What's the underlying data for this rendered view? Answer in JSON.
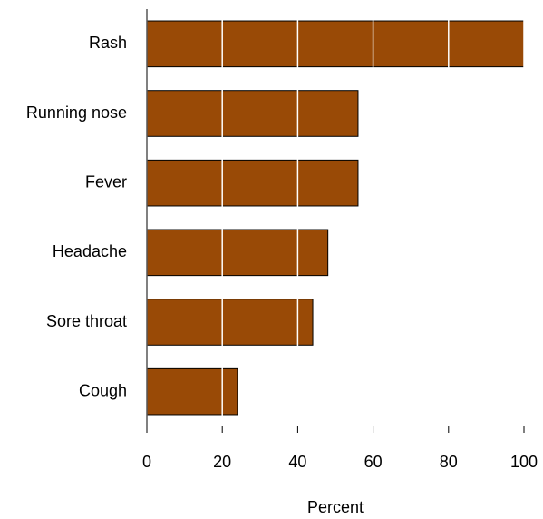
{
  "chart_data": {
    "type": "bar",
    "orientation": "horizontal",
    "x_label": "Percent",
    "categories": [
      "Rash",
      "Running nose",
      "Fever",
      "Headache",
      "Sore throat",
      "Cough"
    ],
    "values": [
      100,
      56,
      56,
      48,
      44,
      24
    ],
    "color": "#994a06",
    "xlim": [
      0,
      100
    ],
    "xticks": [
      0,
      20,
      40,
      60,
      80,
      100
    ],
    "grid": true,
    "grid_color": "#ffffff"
  }
}
